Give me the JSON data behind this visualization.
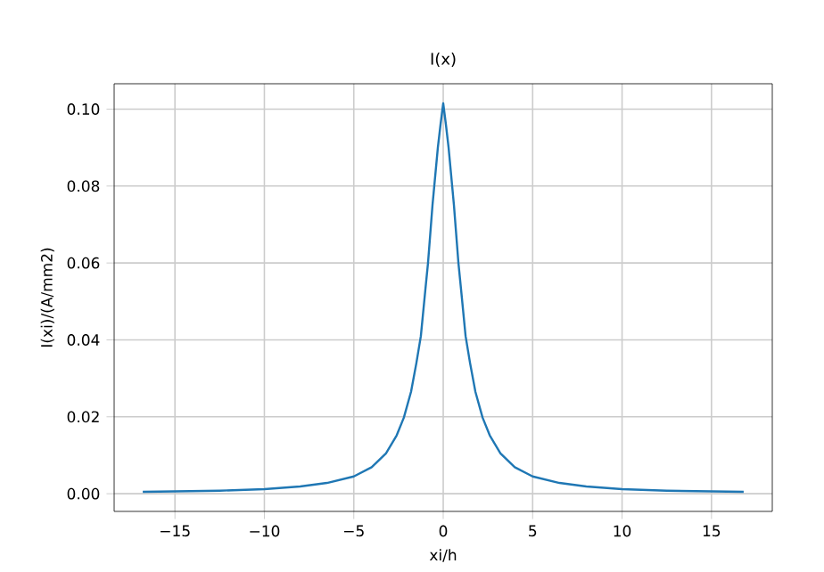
{
  "chart_data": {
    "type": "line",
    "title": "I(x)",
    "xlabel": "xi/h",
    "ylabel": "I(xi)/(A/mm2)",
    "x": [
      -16.8,
      -15,
      -12.5,
      -10,
      -8,
      -6.5,
      -5,
      -4,
      -3.2,
      -2.6,
      -2.2,
      -1.8,
      -1.5,
      -1.25,
      -1,
      -0.85,
      -0.6,
      -0.3,
      -0.15,
      0,
      0.15,
      0.3,
      0.6,
      0.85,
      1,
      1.25,
      1.5,
      1.8,
      2.2,
      2.6,
      3.2,
      4,
      5,
      6.5,
      8,
      10,
      12.5,
      15,
      16.8
    ],
    "series": [
      {
        "color": "#1f77b4",
        "values": [
          0.0005,
          0.0006,
          0.0008,
          0.0012,
          0.0019,
          0.0028,
          0.0045,
          0.0069,
          0.0105,
          0.0152,
          0.0198,
          0.0265,
          0.034,
          0.041,
          0.053,
          0.06,
          0.075,
          0.09,
          0.096,
          0.1015,
          0.096,
          0.09,
          0.075,
          0.06,
          0.053,
          0.041,
          0.034,
          0.0265,
          0.0198,
          0.0152,
          0.0105,
          0.0069,
          0.0045,
          0.0028,
          0.0019,
          0.0012,
          0.0008,
          0.0006,
          0.0005
        ]
      }
    ],
    "xlim": [
      -18.4,
      18.4
    ],
    "ylim": [
      -0.0046,
      0.1066
    ],
    "xticks": [
      {
        "value": -15,
        "label": "−15"
      },
      {
        "value": -10,
        "label": "−10"
      },
      {
        "value": -5,
        "label": "−5"
      },
      0,
      5,
      10,
      15
    ],
    "yticks": [
      {
        "value": 0,
        "label": "0.00"
      },
      {
        "value": 0.02,
        "label": "0.02"
      },
      {
        "value": 0.04,
        "label": "0.04"
      },
      {
        "value": 0.06,
        "label": "0.06"
      },
      {
        "value": 0.08,
        "label": "0.08"
      },
      {
        "value": 0.1,
        "label": "0.10"
      }
    ],
    "grid": true,
    "marker": "none",
    "line_style": "solid"
  }
}
